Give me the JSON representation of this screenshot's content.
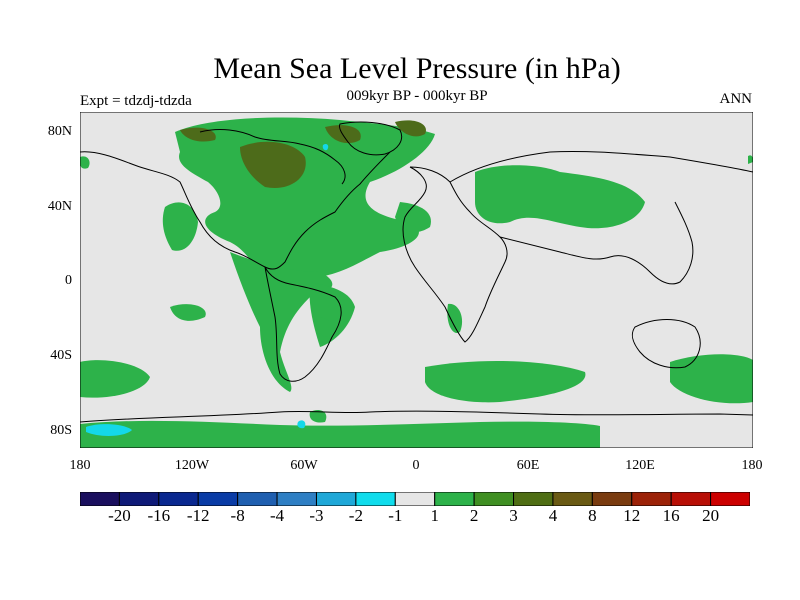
{
  "title": "Mean Sea Level Pressure (in hPa)",
  "subtitle": "009kyr BP - 000kyr BP",
  "left_label": "Expt = tdzdj-tdzda",
  "right_label": "ANN",
  "map": {
    "lat_ticks": [
      "80N",
      "40N",
      "0",
      "40S",
      "80S"
    ],
    "lon_ticks": [
      "180",
      "120W",
      "60W",
      "0",
      "60E",
      "120E",
      "180"
    ],
    "colors": {
      "ocean_bg": "#e6e6e6",
      "green": "#2db24a",
      "dark_olive": "#4d6b1a",
      "cyan": "#14d8e8",
      "coast": "#000000"
    }
  },
  "colorbar": {
    "labels": [
      "-20",
      "-16",
      "-12",
      "-8",
      "-4",
      "-3",
      "-2",
      "-1",
      "1",
      "2",
      "3",
      "4",
      "8",
      "12",
      "16",
      "20"
    ],
    "colors": [
      "#1a0f5e",
      "#0f1a78",
      "#0a2890",
      "#0a3ca6",
      "#1f5fb0",
      "#2e7fc4",
      "#1fa8d8",
      "#10dcec",
      "#e6e6e6",
      "#2db24a",
      "#3f8f22",
      "#4f6e14",
      "#6a5a14",
      "#7a3c10",
      "#9c2208",
      "#b80f06",
      "#cc0000"
    ]
  }
}
